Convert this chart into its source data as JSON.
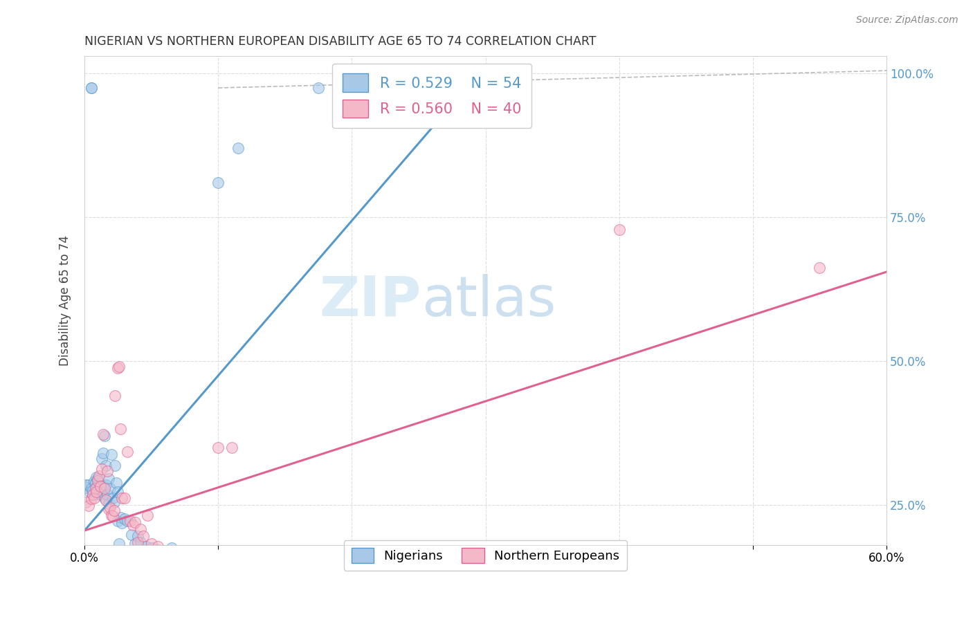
{
  "title": "NIGERIAN VS NORTHERN EUROPEAN DISABILITY AGE 65 TO 74 CORRELATION CHART",
  "source": "Source: ZipAtlas.com",
  "ylabel": "Disability Age 65 to 74",
  "legend_blue_r": "0.529",
  "legend_blue_n": "54",
  "legend_pink_r": "0.560",
  "legend_pink_n": "40",
  "legend_label1": "Nigerians",
  "legend_label2": "Northern Europeans",
  "blue_color": "#a8c8e8",
  "pink_color": "#f4b8c8",
  "blue_edge_color": "#5599cc",
  "pink_edge_color": "#e06090",
  "blue_line_color": "#5599cc",
  "pink_line_color": "#e06090",
  "diag_line_color": "#bbbbbb",
  "blue_scatter": [
    [
      0.001,
      0.285
    ],
    [
      0.002,
      0.28
    ],
    [
      0.003,
      0.285
    ],
    [
      0.004,
      0.272
    ],
    [
      0.005,
      0.278
    ],
    [
      0.006,
      0.268
    ],
    [
      0.006,
      0.275
    ],
    [
      0.007,
      0.29
    ],
    [
      0.008,
      0.288
    ],
    [
      0.009,
      0.28
    ],
    [
      0.009,
      0.298
    ],
    [
      0.01,
      0.295
    ],
    [
      0.011,
      0.27
    ],
    [
      0.012,
      0.268
    ],
    [
      0.013,
      0.33
    ],
    [
      0.013,
      0.272
    ],
    [
      0.014,
      0.282
    ],
    [
      0.014,
      0.34
    ],
    [
      0.015,
      0.37
    ],
    [
      0.015,
      0.262
    ],
    [
      0.016,
      0.285
    ],
    [
      0.016,
      0.318
    ],
    [
      0.017,
      0.268
    ],
    [
      0.018,
      0.295
    ],
    [
      0.018,
      0.252
    ],
    [
      0.019,
      0.278
    ],
    [
      0.02,
      0.338
    ],
    [
      0.021,
      0.262
    ],
    [
      0.022,
      0.255
    ],
    [
      0.023,
      0.318
    ],
    [
      0.024,
      0.288
    ],
    [
      0.025,
      0.272
    ],
    [
      0.025,
      0.222
    ],
    [
      0.026,
      0.182
    ],
    [
      0.027,
      0.228
    ],
    [
      0.028,
      0.218
    ],
    [
      0.03,
      0.225
    ],
    [
      0.032,
      0.222
    ],
    [
      0.035,
      0.198
    ],
    [
      0.038,
      0.182
    ],
    [
      0.04,
      0.195
    ],
    [
      0.042,
      0.185
    ],
    [
      0.046,
      0.178
    ],
    [
      0.05,
      0.175
    ],
    [
      0.055,
      0.172
    ],
    [
      0.06,
      0.17
    ],
    [
      0.065,
      0.175
    ],
    [
      0.09,
      0.168
    ],
    [
      0.1,
      0.81
    ],
    [
      0.115,
      0.87
    ],
    [
      0.175,
      0.975
    ],
    [
      0.215,
      0.975
    ],
    [
      0.005,
      0.975
    ],
    [
      0.005,
      0.975
    ]
  ],
  "pink_scatter": [
    [
      0.001,
      0.255
    ],
    [
      0.003,
      0.248
    ],
    [
      0.005,
      0.26
    ],
    [
      0.006,
      0.268
    ],
    [
      0.007,
      0.262
    ],
    [
      0.008,
      0.278
    ],
    [
      0.009,
      0.272
    ],
    [
      0.01,
      0.292
    ],
    [
      0.011,
      0.3
    ],
    [
      0.012,
      0.282
    ],
    [
      0.013,
      0.312
    ],
    [
      0.014,
      0.372
    ],
    [
      0.015,
      0.278
    ],
    [
      0.016,
      0.258
    ],
    [
      0.017,
      0.308
    ],
    [
      0.018,
      0.242
    ],
    [
      0.019,
      0.245
    ],
    [
      0.02,
      0.232
    ],
    [
      0.021,
      0.23
    ],
    [
      0.022,
      0.24
    ],
    [
      0.023,
      0.44
    ],
    [
      0.025,
      0.488
    ],
    [
      0.026,
      0.49
    ],
    [
      0.027,
      0.382
    ],
    [
      0.028,
      0.262
    ],
    [
      0.03,
      0.262
    ],
    [
      0.032,
      0.342
    ],
    [
      0.034,
      0.222
    ],
    [
      0.036,
      0.215
    ],
    [
      0.038,
      0.22
    ],
    [
      0.04,
      0.185
    ],
    [
      0.042,
      0.208
    ],
    [
      0.044,
      0.195
    ],
    [
      0.047,
      0.232
    ],
    [
      0.05,
      0.182
    ],
    [
      0.055,
      0.178
    ],
    [
      0.1,
      0.35
    ],
    [
      0.11,
      0.35
    ],
    [
      0.4,
      0.728
    ],
    [
      0.55,
      0.662
    ]
  ],
  "blue_line": [
    [
      0.0,
      0.205
    ],
    [
      0.295,
      1.0
    ]
  ],
  "pink_line": [
    [
      0.0,
      0.205
    ],
    [
      0.6,
      0.655
    ]
  ],
  "diag_line": [
    [
      0.1,
      0.975
    ],
    [
      0.6,
      1.005
    ]
  ],
  "xmin": 0.0,
  "xmax": 0.6,
  "ymin": 0.18,
  "ymax": 1.03,
  "yticks": [
    0.25,
    0.5,
    0.75,
    1.0
  ],
  "xticks": [
    0.0,
    0.1,
    0.2,
    0.3,
    0.4,
    0.5,
    0.6
  ],
  "watermark_zip": "ZIP",
  "watermark_atlas": "atlas",
  "background_color": "#ffffff",
  "grid_color": "#dddddd"
}
